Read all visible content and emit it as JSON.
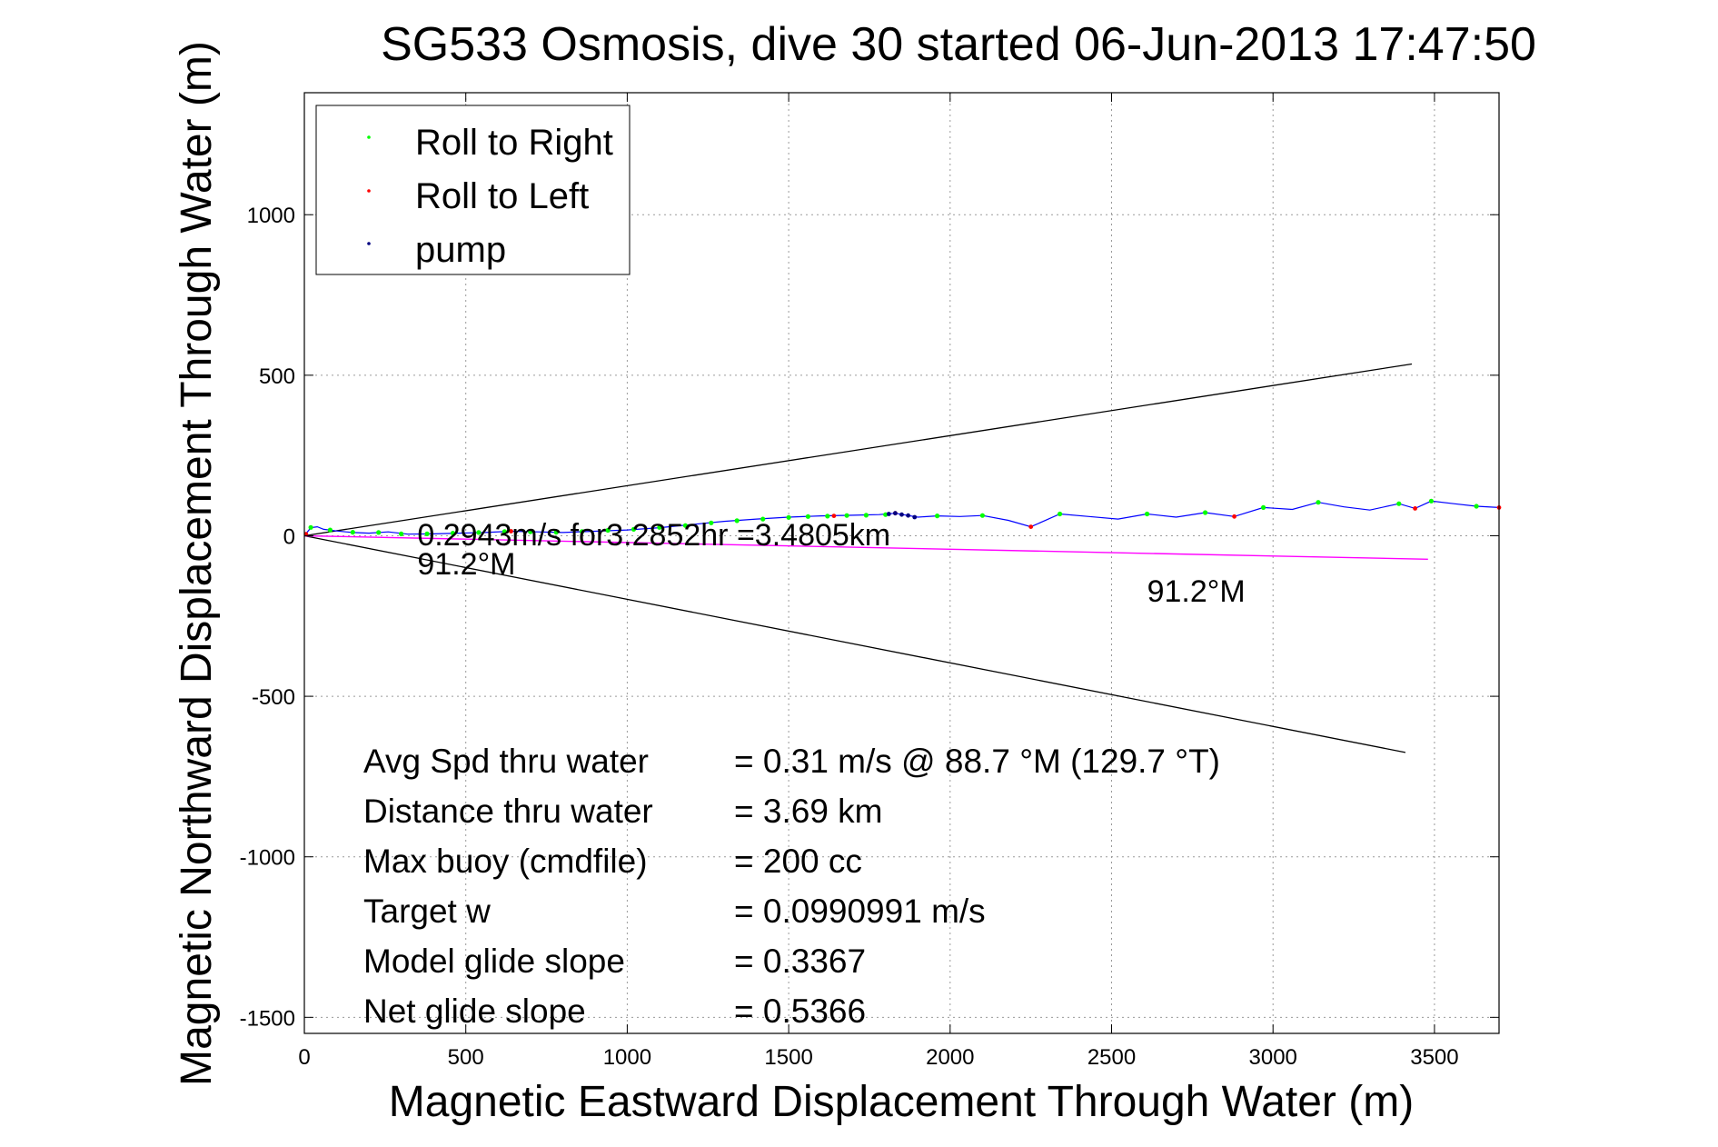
{
  "chart_data": {
    "type": "line",
    "title": "SG533 Osmosis, dive 30 started 06-Jun-2013 17:47:50",
    "xlabel": "Magnetic Eastward Displacement Through Water (m)",
    "ylabel": "Magnetic Northward Displacement Through Water (m)",
    "xlim": [
      0,
      3700
    ],
    "ylim": [
      -1550,
      1380
    ],
    "xticks": [
      0,
      500,
      1000,
      1500,
      2000,
      2500,
      3000,
      3500
    ],
    "yticks": [
      -1500,
      -1000,
      -500,
      0,
      500,
      1000
    ],
    "xtick_labels": [
      "0",
      "500",
      "1000",
      "1500",
      "2000",
      "2500",
      "3000",
      "3500"
    ],
    "ytick_labels": [
      "-1500",
      "-1000",
      "-500",
      "0",
      "500",
      "1000"
    ],
    "grid": true,
    "legend_position": "top-left",
    "legend": [
      {
        "label": "Roll to Right",
        "color": "#00ff00"
      },
      {
        "label": "Roll to Left",
        "color": "#ff0000"
      },
      {
        "label": "pump",
        "color": "#000080"
      }
    ],
    "colors": {
      "track": "#0000ff",
      "roll_right": "#00ff00",
      "roll_left": "#ff0000",
      "pump": "#000080",
      "heading_line": "#ff00ff",
      "envelope": "#000000"
    },
    "series": [
      {
        "role": "track",
        "x": [
          0,
          20,
          40,
          60,
          100,
          150,
          200,
          260,
          320,
          400,
          480,
          560,
          640,
          720,
          800,
          900,
          1000,
          1100,
          1200,
          1300,
          1400,
          1500,
          1600,
          1700,
          1780,
          1830,
          1870,
          1900,
          1960,
          2030,
          2100,
          2180,
          2250,
          2340,
          2430,
          2520,
          2610,
          2700,
          2790,
          2880,
          2970,
          3060,
          3140,
          3220,
          3300,
          3390,
          3440,
          3490,
          3560,
          3630,
          3700
        ],
        "y": [
          0,
          25,
          28,
          20,
          15,
          10,
          8,
          12,
          5,
          6,
          8,
          10,
          14,
          12,
          10,
          14,
          18,
          25,
          35,
          45,
          52,
          58,
          62,
          64,
          66,
          70,
          63,
          58,
          62,
          60,
          63,
          48,
          28,
          68,
          60,
          52,
          68,
          58,
          72,
          60,
          88,
          82,
          104,
          90,
          80,
          100,
          85,
          108,
          100,
          92,
          88
        ]
      },
      {
        "role": "roll_right",
        "x": [
          20,
          80,
          150,
          230,
          300,
          380,
          460,
          540,
          620,
          700,
          780,
          860,
          940,
          1020,
          1100,
          1180,
          1260,
          1340,
          1420,
          1500,
          1560,
          1620,
          1680,
          1740,
          1800,
          1960,
          2100,
          2340,
          2610,
          2790,
          2970,
          3140,
          3390,
          3490,
          3630
        ],
        "y": [
          26,
          18,
          11,
          10,
          6,
          6,
          8,
          10,
          13,
          12,
          11,
          13,
          17,
          20,
          26,
          32,
          40,
          47,
          52,
          57,
          60,
          61,
          63,
          64,
          66,
          62,
          63,
          68,
          68,
          72,
          88,
          104,
          100,
          108,
          92
        ]
      },
      {
        "role": "roll_left",
        "x": [
          5,
          640,
          1640,
          1830,
          2250,
          2880,
          3440,
          3700
        ],
        "y": [
          5,
          14,
          62,
          70,
          28,
          60,
          85,
          88
        ]
      },
      {
        "role": "pump",
        "x": [
          1810,
          1830,
          1850,
          1870,
          1890
        ],
        "y": [
          68,
          70,
          66,
          63,
          58
        ]
      },
      {
        "role": "heading_line",
        "x": [
          0,
          3480
        ],
        "y": [
          0,
          -73
        ]
      },
      {
        "role": "envelope_upper",
        "x": [
          0,
          3430
        ],
        "y": [
          0,
          535
        ]
      },
      {
        "role": "envelope_lower",
        "x": [
          0,
          3410
        ],
        "y": [
          0,
          -675
        ]
      }
    ],
    "annotations": [
      {
        "text": "0.2943m/s for3.2852hr =3.4805km",
        "x": 350,
        "y": -30
      },
      {
        "text": "91.2°M",
        "x": 350,
        "y": -120
      },
      {
        "text": "91.2°M",
        "x": 2610,
        "y": -205
      }
    ],
    "stats": [
      {
        "label": "Avg Spd thru water",
        "value": "=  0.31 m/s @  88.7 °M (129.7 °T)"
      },
      {
        "label": "Distance thru water",
        "value": "=  3.69 km"
      },
      {
        "label": "Max buoy (cmdfile)",
        "value": "= 200 cc"
      },
      {
        "label": "Target w",
        "value": "= 0.0990991 m/s"
      },
      {
        "label": "Model glide slope",
        "value": "= 0.3367"
      },
      {
        "label": "Net glide slope",
        "value": "= 0.5366"
      }
    ]
  }
}
